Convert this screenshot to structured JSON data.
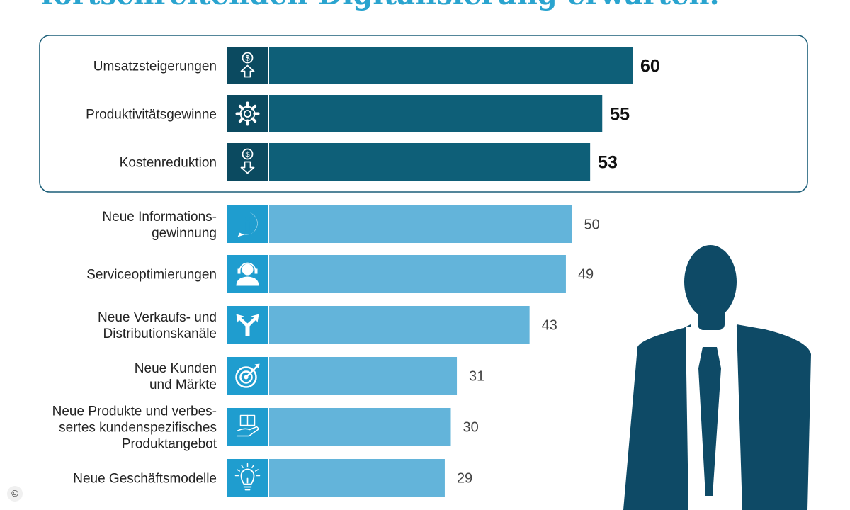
{
  "header": {
    "title": "fortschreitenden Digitalisierung erwarten."
  },
  "colors": {
    "top_bar": "#0e5f78",
    "top_icon": "#0b4a60",
    "other_bar": "#63b4da",
    "other_icon": "#1f9dcf",
    "frame": "#1b5e78",
    "silhouette": "#0e4a66"
  },
  "chart_data": {
    "type": "bar",
    "orientation": "horizontal",
    "title": "fortschreitenden Digitalisierung erwarten.",
    "categories": [
      "Umsatzsteigerungen",
      "Produktivitätsgewinne",
      "Kostenreduktion",
      "Neue Informations-\ngewinnung",
      "Serviceoptimierungen",
      "Neue Verkaufs- und\nDistributionskanäle",
      "Neue Kunden\nund Märkte",
      "Neue Produkte und verbes-\nsertes kundenspezifisches\nProduktangebot",
      "Neue Geschäftsmodelle"
    ],
    "values": [
      60,
      55,
      53,
      50,
      49,
      43,
      31,
      30,
      29
    ],
    "icons": [
      "dollar-up-icon",
      "gear-icon",
      "dollar-down-icon",
      "info-icon",
      "headset-icon",
      "split-arrow-icon",
      "target-icon",
      "hand-book-icon",
      "lightbulb-icon"
    ],
    "highlighted_top": 3,
    "grid": false,
    "legend": "none"
  },
  "footer": {
    "copyright_symbol": "©"
  }
}
